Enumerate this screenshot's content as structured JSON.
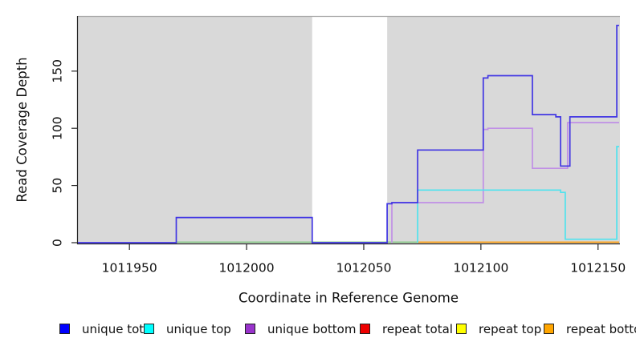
{
  "figure_type": "read-coverage-step-plot",
  "chart_data": {
    "type": "line",
    "title": "",
    "xlabel": "Coordinate in Reference Genome",
    "ylabel": "Read Coverage Depth",
    "xlim": [
      1011928,
      1012159
    ],
    "ylim": [
      0,
      198
    ],
    "x_ticks": [
      1011950,
      1012000,
      1012050,
      1012100,
      1012150
    ],
    "y_ticks": [
      0,
      50,
      100,
      150
    ],
    "grid": "off",
    "plot_background": "#D9D9D9",
    "plot_background_border": "#A8A8A8",
    "gap_region": {
      "x_start": 1012028,
      "x_end": 1012060,
      "fill": "#FFFFFF"
    },
    "axis_color": "#262626",
    "series": [
      {
        "name": "repeat total",
        "line_color": "#DD2222",
        "points": [
          [
            1012073,
            0.5
          ],
          [
            1012159,
            0.5
          ]
        ]
      },
      {
        "name": "repeat top",
        "line_color": "#EEEE22",
        "points": [
          [
            1012073,
            0.5
          ],
          [
            1012159,
            0.5
          ]
        ]
      },
      {
        "name": "baseline (unlabeled)",
        "line_color": "#8CCC8C",
        "points": [
          [
            1011970,
            0.5
          ],
          [
            1012073,
            0.5
          ]
        ]
      },
      {
        "name": "repeat bottom",
        "line_color": "#FFA51E",
        "points": [
          [
            1012073,
            0.5
          ],
          [
            1012159,
            0.5
          ]
        ]
      },
      {
        "name": "unique bottom",
        "line_color": "#C08FE6",
        "points": [
          [
            1012062,
            0
          ],
          [
            1012062,
            35
          ],
          [
            1012101,
            35
          ],
          [
            1012101,
            99
          ],
          [
            1012103,
            99
          ],
          [
            1012103,
            100
          ],
          [
            1012122,
            100
          ],
          [
            1012122,
            65
          ],
          [
            1012137,
            65
          ],
          [
            1012137,
            105
          ],
          [
            1012159,
            105
          ]
        ]
      },
      {
        "name": "unique top",
        "line_color": "#4FE3EE",
        "points": [
          [
            1012073,
            0
          ],
          [
            1012073,
            46
          ],
          [
            1012134,
            46
          ],
          [
            1012134,
            44
          ],
          [
            1012136,
            44
          ],
          [
            1012136,
            3
          ],
          [
            1012158,
            3
          ],
          [
            1012158,
            84
          ],
          [
            1012159,
            84
          ]
        ]
      },
      {
        "name": "unique total",
        "line_color": "#4136E3",
        "points": [
          [
            1011928,
            0
          ],
          [
            1011970,
            0
          ],
          [
            1011970,
            22
          ],
          [
            1012028,
            22
          ],
          [
            1012028,
            0
          ],
          [
            1012060,
            0
          ],
          [
            1012060,
            34
          ],
          [
            1012062,
            34
          ],
          [
            1012062,
            35
          ],
          [
            1012073,
            35
          ],
          [
            1012073,
            81
          ],
          [
            1012101,
            81
          ],
          [
            1012101,
            144
          ],
          [
            1012103,
            144
          ],
          [
            1012103,
            146
          ],
          [
            1012122,
            146
          ],
          [
            1012122,
            112
          ],
          [
            1012132,
            112
          ],
          [
            1012132,
            110
          ],
          [
            1012134,
            110
          ],
          [
            1012134,
            67
          ],
          [
            1012138,
            67
          ],
          [
            1012138,
            110
          ],
          [
            1012158,
            110
          ],
          [
            1012158,
            190
          ],
          [
            1012159,
            190
          ]
        ]
      }
    ]
  },
  "legend": {
    "items": [
      {
        "label": "unique total",
        "color": "#0000FF"
      },
      {
        "label": "unique top",
        "color": "#00FFFF"
      },
      {
        "label": "unique bottom",
        "color": "#9933CC"
      },
      {
        "label": "repeat total",
        "color": "#EE0000"
      },
      {
        "label": "repeat top",
        "color": "#FFFF00"
      },
      {
        "label": "repeat bottom",
        "color": "#FFA500"
      }
    ]
  }
}
